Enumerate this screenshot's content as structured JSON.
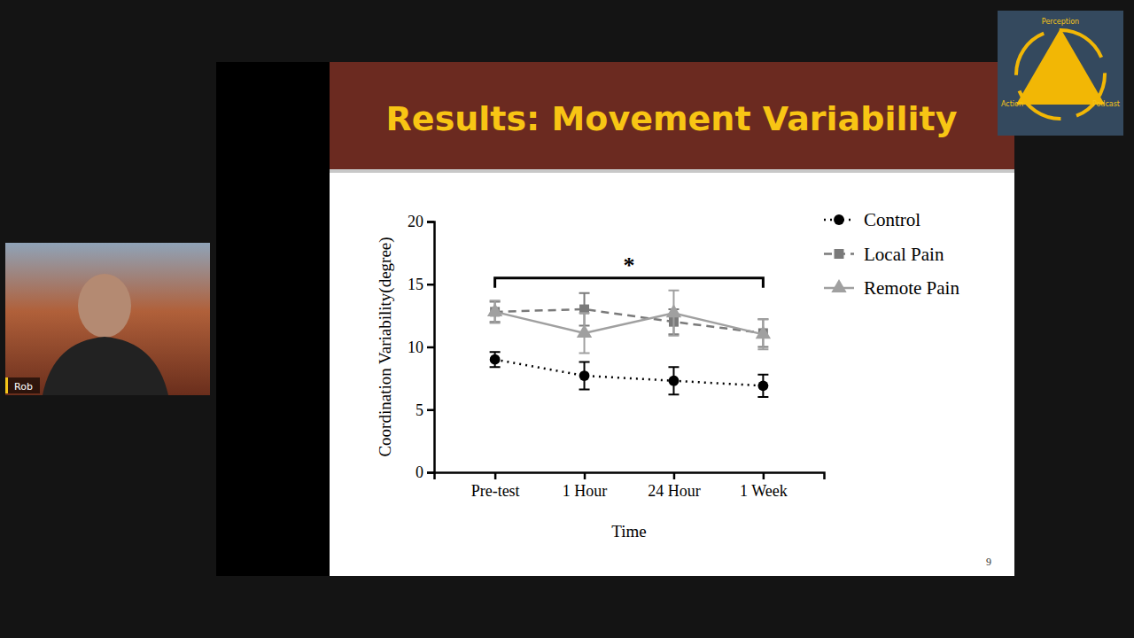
{
  "chart_data": {
    "type": "line",
    "title": "Results: Movement Variability",
    "x_label": "Time",
    "y_label": "Coordination Variability(degree)",
    "categories": [
      "Pre-test",
      "1 Hour",
      "24 Hour",
      "1 Week"
    ],
    "series": [
      {
        "name": "Control",
        "color": "#000000",
        "marker": "circle",
        "line_style": "dotted",
        "values": [
          9.0,
          7.7,
          7.3,
          6.9
        ],
        "errors": [
          0.6,
          1.1,
          1.1,
          0.9
        ]
      },
      {
        "name": "Local Pain",
        "color": "#7a7a7a",
        "marker": "square",
        "line_style": "dashed",
        "values": [
          12.8,
          13.0,
          12.0,
          11.1
        ],
        "errors": [
          0.8,
          1.3,
          1.0,
          1.1
        ]
      },
      {
        "name": "Remote Pain",
        "color": "#a0a0a0",
        "marker": "triangle",
        "line_style": "solid",
        "values": [
          12.8,
          11.1,
          12.7,
          11.0
        ],
        "errors": [
          0.9,
          1.6,
          1.8,
          1.2
        ]
      }
    ],
    "ylim": [
      0,
      20
    ],
    "yticks": [
      0,
      5,
      10,
      15,
      20
    ],
    "grid": false,
    "legend": "right",
    "annotations": [
      {
        "text": "*",
        "y": 15.5
      }
    ]
  },
  "page_number": 9,
  "video": {
    "speaker": "Rob",
    "logo": [
      "Perception",
      "Action",
      "Podcast"
    ]
  }
}
